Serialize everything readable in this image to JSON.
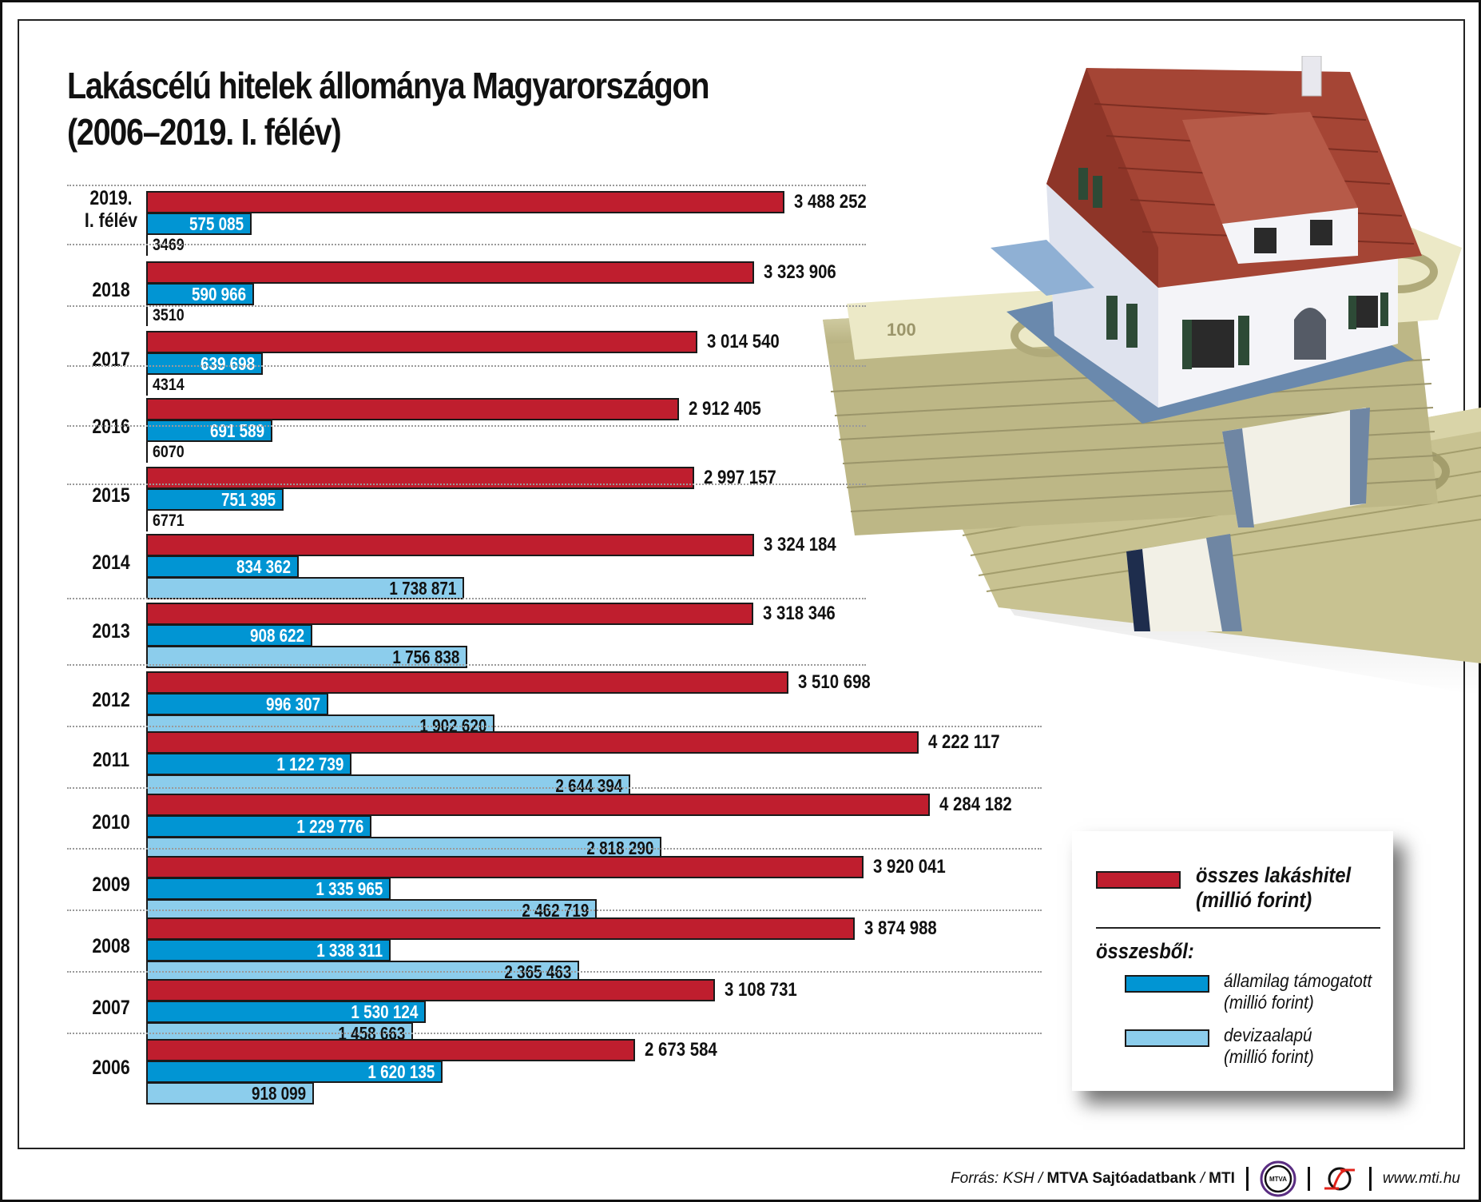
{
  "title": {
    "line1": "Lakáscélú hitelek állománya Magyarországon",
    "line2": "(2006–2019. I. félév)"
  },
  "rows": [
    {
      "label1": "2019.",
      "label2": "I. félév",
      "total": "3 488 252",
      "state": "575 085",
      "fx": "3469"
    },
    {
      "label1": "2018",
      "label2": "",
      "total": "3 323 906",
      "state": "590 966",
      "fx": "3510"
    },
    {
      "label1": "2017",
      "label2": "",
      "total": "3 014 540",
      "state": "639 698",
      "fx": "4314"
    },
    {
      "label1": "2016",
      "label2": "",
      "total": "2 912 405",
      "state": "691 589",
      "fx": "6070"
    },
    {
      "label1": "2015",
      "label2": "",
      "total": "2 997 157",
      "state": "751 395",
      "fx": "6771"
    },
    {
      "label1": "2014",
      "label2": "",
      "total": "3 324 184",
      "state": "834 362",
      "fx": "1 738 871"
    },
    {
      "label1": "2013",
      "label2": "",
      "total": "3 318 346",
      "state": "908 622",
      "fx": "1 756 838"
    },
    {
      "label1": "2012",
      "label2": "",
      "total": "3 510 698",
      "state": "996 307",
      "fx": "1 902 620"
    },
    {
      "label1": "2011",
      "label2": "",
      "total": "4 222 117",
      "state": "1 122 739",
      "fx": "2 644 394"
    },
    {
      "label1": "2010",
      "label2": "",
      "total": "4 284 182",
      "state": "1 229 776",
      "fx": "2 818 290"
    },
    {
      "label1": "2009",
      "label2": "",
      "total": "3 920 041",
      "state": "1 335 965",
      "fx": "2 462 719"
    },
    {
      "label1": "2008",
      "label2": "",
      "total": "3 874 988",
      "state": "1 338 311",
      "fx": "2 365 463"
    },
    {
      "label1": "2007",
      "label2": "",
      "total": "3 108 731",
      "state": "1 530 124",
      "fx": "1 458 663"
    },
    {
      "label1": "2006",
      "label2": "",
      "total": "2 673 584",
      "state": "1 620 135",
      "fx": "918 099"
    }
  ],
  "legend": {
    "total_line1": "összes lakáshitel",
    "total_line2": "(millió forint)",
    "subheader": "összesből:",
    "state_line1": "államilag támogatott",
    "state_line2": "(millió forint)",
    "fx_line1": "devizaalapú",
    "fx_line2": "(millió forint)"
  },
  "footer": {
    "source_prefix": "Forrás: KSH / ",
    "source_bold1": "MTVA Sajtóadatbank",
    "source_mid": " / ",
    "source_bold2": "MTI",
    "logo1_text": "MTVA",
    "website": "www.mti.hu"
  },
  "colors": {
    "total": "#bf1e2e",
    "state": "#0195d3",
    "fx": "#8ccdec"
  },
  "illustration": {
    "icon": "house-on-money-icon",
    "banknote_text": "100"
  },
  "chart_data": {
    "type": "bar",
    "orientation": "horizontal",
    "title": "Lakáscélú hitelek állománya Magyarországon (2006–2019. I. félév)",
    "categories": [
      "2019. I. félév",
      "2018",
      "2017",
      "2016",
      "2015",
      "2014",
      "2013",
      "2012",
      "2011",
      "2010",
      "2009",
      "2008",
      "2007",
      "2006"
    ],
    "series": [
      {
        "name": "összes lakáshitel (millió forint)",
        "color": "#bf1e2e",
        "values": [
          3488252,
          3323906,
          3014540,
          2912405,
          2997157,
          3324184,
          3318346,
          3510698,
          4222117,
          4284182,
          3920041,
          3874988,
          3108731,
          2673584
        ]
      },
      {
        "name": "államilag támogatott (millió forint)",
        "color": "#0195d3",
        "values": [
          575085,
          590966,
          639698,
          691589,
          751395,
          834362,
          908622,
          996307,
          1122739,
          1229776,
          1335965,
          1338311,
          1530124,
          1620135
        ]
      },
      {
        "name": "devizaalapú (millió forint)",
        "color": "#8ccdec",
        "values": [
          3469,
          3510,
          4314,
          6070,
          6771,
          1738871,
          1756838,
          1902620,
          2644394,
          2818290,
          2462719,
          2365463,
          1458663,
          918099
        ]
      }
    ],
    "xlabel": "",
    "ylabel": "",
    "legend_position": "bottom-right",
    "grid": false,
    "source": "Forrás: KSH / MTVA Sajtóadatbank / MTI"
  }
}
